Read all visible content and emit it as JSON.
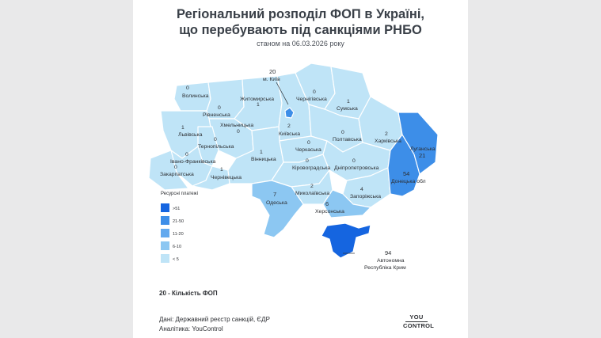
{
  "title_line1": "Регіональний розподіл ФОП в Україні,",
  "title_line2": "що перебувають під санкціями РНБО",
  "subtitle": "станом на 06.03.2026 року",
  "legend": {
    "title": "Ресурсні платежі",
    "items": [
      {
        "label": ">51",
        "color": "#1565e0"
      },
      {
        "label": "21-50",
        "color": "#3d8ee8"
      },
      {
        "label": "11-20",
        "color": "#63a9ee"
      },
      {
        "label": "6-10",
        "color": "#8cc7f2"
      },
      {
        "label": "< 5",
        "color": "#bfe4f7"
      }
    ]
  },
  "regions": [
    {
      "name": "Волинська",
      "count": "0"
    },
    {
      "name": "Рівненська",
      "count": "0"
    },
    {
      "name": "Житомирська",
      "count": "1"
    },
    {
      "name": "Чернігівська",
      "count": "0"
    },
    {
      "name": "Сумська",
      "count": "1"
    },
    {
      "name": "Хмельницька",
      "count": "0"
    },
    {
      "name": "Київська",
      "count": "2"
    },
    {
      "name": "Полтавська",
      "count": "0"
    },
    {
      "name": "Харківська",
      "count": "2"
    },
    {
      "name": "Львівська",
      "count": "1"
    },
    {
      "name": "Тернопільська",
      "count": "0"
    },
    {
      "name": "Черкаська",
      "count": "0"
    },
    {
      "name": "Луганська",
      "count": "21"
    },
    {
      "name": "Івано-Франківська",
      "count": "0"
    },
    {
      "name": "Вінницька",
      "count": "1"
    },
    {
      "name": "Кіровоградська",
      "count": "0"
    },
    {
      "name": "Дніпропетровська",
      "count": "0"
    },
    {
      "name": "Донецька обл",
      "count": "54"
    },
    {
      "name": "Закарпатська",
      "count": "0"
    },
    {
      "name": "Чернівецька",
      "count": "1"
    },
    {
      "name": "Миколаївська",
      "count": "2"
    },
    {
      "name": "Запоріжська",
      "count": "4"
    },
    {
      "name": "Одеська",
      "count": "7"
    },
    {
      "name": "Херсонська",
      "count": "6"
    }
  ],
  "kyiv": {
    "count": "20",
    "name": "м. Київ"
  },
  "crimea": {
    "count": "94",
    "name_line1": "Автономна",
    "name_line2": "Республіка Крим"
  },
  "footnote": "20 - Кількість ФОП",
  "source_line1": "Дані: Державний реєстр санкцій, ЄДР",
  "source_line2": "Аналітика: YouControl",
  "logo": {
    "line1": "YOU",
    "line2": "CONTROL"
  },
  "colors": {
    "base": "#bfe4f7",
    "c_6_10": "#8cc7f2",
    "c_21_50": "#3d8ee8",
    "c_gt51": "#1565e0",
    "border": "#ffffff"
  }
}
